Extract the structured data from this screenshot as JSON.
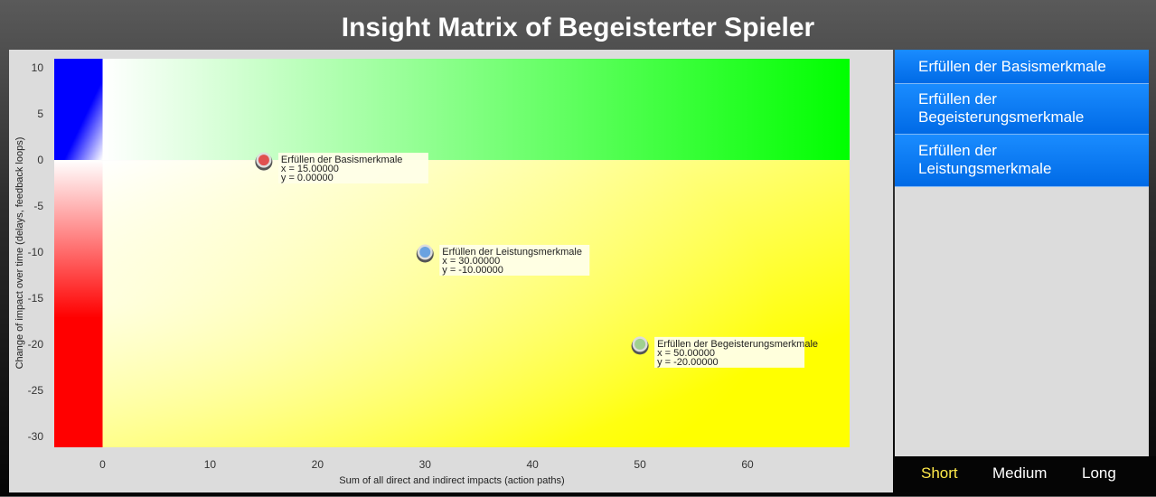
{
  "title": "Insight Matrix of Begeisterter Spieler",
  "chart_data": {
    "type": "scatter",
    "xlabel": "Sum of all direct and indirect impacts (action paths)",
    "ylabel": "Change of impact over time (delays, feedback loops)",
    "xlim": [
      -4.5,
      69.5
    ],
    "ylim": [
      -31.2,
      11
    ],
    "x_ticks": [
      0,
      10,
      20,
      30,
      40,
      50,
      60
    ],
    "y_ticks": [
      10,
      5,
      0,
      -5,
      -10,
      -15,
      -20,
      -25,
      -30
    ],
    "quadrant_colors": {
      "top_left": "#0000ff",
      "top_right": "#00ff00",
      "bottom_left": "#ff0000",
      "bottom_right": "#ffff00"
    },
    "points": [
      {
        "name": "Erfüllen der Basismerkmale",
        "x": 15,
        "y": 0,
        "x_label": "x = 15.00000",
        "y_label": "y = 0.00000",
        "color": "#e05050"
      },
      {
        "name": "Erfüllen der Leistungsmerkmale",
        "x": 30,
        "y": -10,
        "x_label": "x = 30.00000",
        "y_label": "y = -10.00000",
        "color": "#6aa2e0"
      },
      {
        "name": "Erfüllen der Begeisterungsmerkmale",
        "x": 50,
        "y": -20,
        "x_label": "x = 50.00000",
        "y_label": "y = -20.00000",
        "color": "#a0d090"
      }
    ]
  },
  "sidebar": {
    "items": [
      {
        "line1": "Erfüllen der Basismerkmale",
        "line2": ""
      },
      {
        "line1": "Erfüllen der",
        "line2": "Begeisterungsmerkmale"
      },
      {
        "line1": "Erfüllen der",
        "line2": "Leistungsmerkmale"
      }
    ]
  },
  "tabs": [
    {
      "label": "Short",
      "active": true
    },
    {
      "label": "Medium",
      "active": false
    },
    {
      "label": "Long",
      "active": false
    }
  ]
}
